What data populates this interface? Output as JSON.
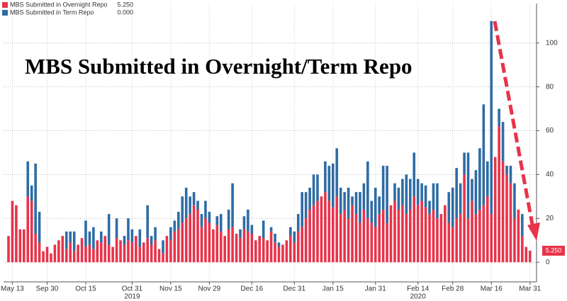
{
  "chart_data": {
    "type": "stacked_bar",
    "title": "MBS Submitted in Overnight/Term Repo",
    "categories": [
      null,
      "May 13",
      null,
      null,
      null,
      null,
      null,
      null,
      null,
      null,
      "Sep 30",
      null,
      null,
      null,
      null,
      null,
      null,
      null,
      null,
      null,
      "Oct 15",
      null,
      null,
      null,
      null,
      null,
      null,
      null,
      null,
      null,
      null,
      null,
      "Oct 31",
      null,
      null,
      null,
      null,
      null,
      null,
      null,
      null,
      null,
      "Nov 15",
      null,
      null,
      null,
      null,
      null,
      null,
      null,
      null,
      null,
      "Nov 29",
      null,
      null,
      null,
      null,
      null,
      null,
      null,
      null,
      null,
      null,
      "Dec 16",
      null,
      null,
      null,
      null,
      null,
      null,
      null,
      null,
      null,
      null,
      "Dec 31",
      null,
      null,
      null,
      null,
      null,
      null,
      null,
      null,
      null,
      "Jan 15",
      null,
      null,
      null,
      null,
      null,
      null,
      null,
      null,
      null,
      null,
      "Jan 31",
      null,
      null,
      null,
      null,
      null,
      null,
      null,
      null,
      null,
      null,
      "Feb 14",
      null,
      null,
      null,
      null,
      null,
      null,
      null,
      null,
      "Feb 28",
      null,
      null,
      null,
      null,
      null,
      null,
      null,
      null,
      null,
      "Mar 16",
      null,
      null,
      null,
      null,
      null,
      null,
      null,
      null,
      null,
      "Mar 31"
    ],
    "year_labels": [
      {
        "text": "2019",
        "category": 32
      },
      {
        "text": "2020",
        "category": 106
      }
    ],
    "series": [
      {
        "name": "MBS Submitted in Overnight Repo",
        "legend_value": "5.250",
        "color": "#e8334a",
        "values": [
          12,
          28,
          26,
          15,
          15,
          30,
          28,
          13,
          9,
          5,
          7,
          4,
          8,
          10,
          12,
          6,
          9,
          5,
          8,
          11,
          7,
          8,
          6,
          10,
          9,
          12,
          8,
          7,
          11,
          10,
          8,
          10,
          9,
          12,
          7,
          9,
          11,
          8,
          10,
          6,
          4,
          12,
          10,
          14,
          15,
          18,
          20,
          22,
          26,
          24,
          16,
          20,
          18,
          15,
          17,
          14,
          12,
          15,
          16,
          13,
          11,
          15,
          14,
          13,
          10,
          12,
          11,
          10,
          14,
          9,
          7,
          8,
          10,
          12,
          9,
          14,
          16,
          20,
          24,
          26,
          28,
          30,
          32,
          28,
          25,
          30,
          22,
          24,
          20,
          26,
          22,
          18,
          24,
          20,
          18,
          16,
          22,
          24,
          18,
          26,
          28,
          24,
          26,
          22,
          24,
          30,
          26,
          28,
          25,
          22,
          24,
          20,
          22,
          26,
          18,
          16,
          20,
          22,
          40,
          20,
          28,
          22,
          24,
          26,
          30,
          22,
          48,
          62,
          46,
          40,
          36,
          20,
          24,
          12,
          7,
          5.25
        ]
      },
      {
        "name": "MBS Submitted in Term Repo",
        "legend_value": "0.000",
        "color": "#2e6ca4",
        "values": [
          0,
          0,
          0,
          0,
          0,
          16,
          7,
          32,
          14,
          0,
          0,
          0,
          0,
          0,
          0,
          8,
          5,
          9,
          0,
          0,
          12,
          6,
          10,
          0,
          5,
          0,
          14,
          0,
          9,
          0,
          4,
          10,
          6,
          0,
          8,
          0,
          15,
          4,
          6,
          0,
          6,
          0,
          6,
          5,
          8,
          12,
          14,
          8,
          6,
          4,
          6,
          8,
          5,
          0,
          4,
          8,
          0,
          9,
          20,
          0,
          4,
          6,
          10,
          4,
          0,
          0,
          8,
          0,
          2,
          4,
          2,
          0,
          0,
          4,
          5,
          8,
          16,
          12,
          10,
          14,
          12,
          0,
          14,
          16,
          20,
          22,
          12,
          8,
          14,
          4,
          10,
          14,
          12,
          26,
          10,
          18,
          8,
          20,
          26,
          0,
          8,
          10,
          12,
          18,
          14,
          20,
          12,
          8,
          10,
          6,
          12,
          16,
          0,
          0,
          14,
          18,
          23,
          14,
          10,
          30,
          10,
          20,
          28,
          46,
          16,
          88,
          0,
          8,
          18,
          4,
          8,
          16,
          0,
          10,
          0,
          0
        ]
      }
    ],
    "last_value_label": "5.250",
    "ylim": [
      -8,
      118
    ],
    "yticks": [
      0,
      20,
      40,
      60,
      80,
      100
    ],
    "grid": true
  }
}
